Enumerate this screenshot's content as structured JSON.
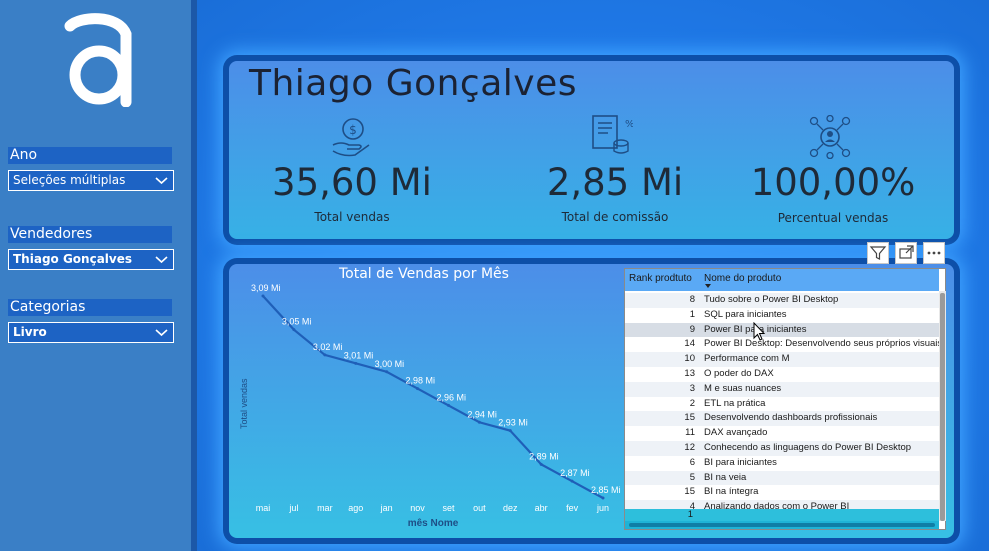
{
  "sidebar": {
    "slicers": [
      {
        "title": "Ano",
        "value": "Seleções múltiplas"
      },
      {
        "title": "Vendedores",
        "value": "Thiago Gonçalves"
      },
      {
        "title": "Categorias",
        "value": "Livro"
      }
    ]
  },
  "header": {
    "name": "Thiago Gonçalves"
  },
  "kpis": [
    {
      "value": "35,60 Mi",
      "label": "Total vendas",
      "icon": "money-hand-icon"
    },
    {
      "value": "2,85 Mi",
      "label": "Total de comissão",
      "icon": "receipt-coins-icon"
    },
    {
      "value": "100,00%",
      "label": "Percentual vendas",
      "icon": "network-people-icon"
    }
  ],
  "chart_data": {
    "type": "line",
    "title": "Total de Vendas por Mês",
    "xlabel": "mês Nome",
    "ylabel": "Total vendas",
    "categories": [
      "mai",
      "jul",
      "mar",
      "ago",
      "jan",
      "nov",
      "set",
      "out",
      "dez",
      "abr",
      "fev",
      "jun"
    ],
    "values": [
      3.09,
      3.05,
      3.02,
      3.01,
      3.0,
      2.98,
      2.96,
      2.94,
      2.93,
      2.89,
      2.87,
      2.85
    ],
    "data_labels": [
      "3,09 Mi",
      "3,05 Mi",
      "3,02 Mi",
      "3,01 Mi",
      "3,00 Mi",
      "2,98 Mi",
      "2,96 Mi",
      "2,94 Mi",
      "2,93 Mi",
      "2,89 Mi",
      "2,87 Mi",
      "2,85 Mi"
    ],
    "color": "#1f5fb8"
  },
  "table": {
    "headers": {
      "rank": "Rank prodtuto",
      "name": "Nome do produto"
    },
    "rows": [
      {
        "rank": "8",
        "name": "Tudo sobre o Power BI Desktop"
      },
      {
        "rank": "1",
        "name": "SQL para iniciantes"
      },
      {
        "rank": "9",
        "name": "Power BI para iniciantes"
      },
      {
        "rank": "14",
        "name": "Power BI Desktop: Desenvolvendo seus próprios visuais"
      },
      {
        "rank": "10",
        "name": "Performance com M"
      },
      {
        "rank": "13",
        "name": "O poder do DAX"
      },
      {
        "rank": "3",
        "name": "M e suas nuances"
      },
      {
        "rank": "2",
        "name": "ETL na prática"
      },
      {
        "rank": "15",
        "name": "Desenvolvendo dashboards profissionais"
      },
      {
        "rank": "11",
        "name": "DAX avançado"
      },
      {
        "rank": "12",
        "name": "Conhecendo as linguagens do Power BI Desktop"
      },
      {
        "rank": "6",
        "name": "BI para iniciantes"
      },
      {
        "rank": "5",
        "name": "BI na veia"
      },
      {
        "rank": "15",
        "name": "BI na íntegra"
      },
      {
        "rank": "4",
        "name": "Analizando dados com o Power BI"
      }
    ],
    "total": "1"
  }
}
